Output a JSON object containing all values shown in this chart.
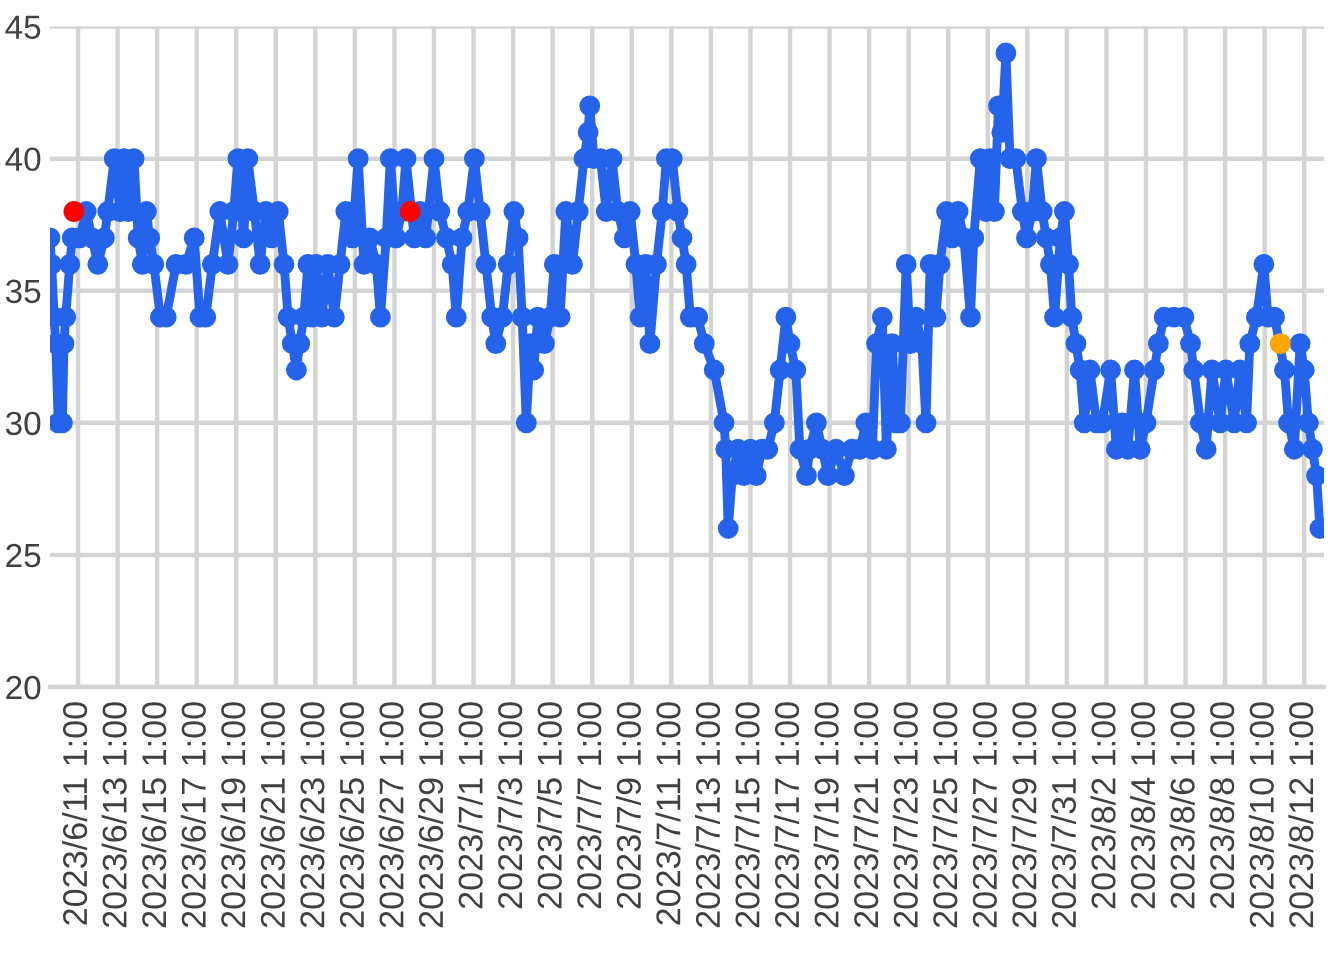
{
  "chart_data": {
    "type": "line",
    "x": [
      "2023-06-09T15:00",
      "2023-06-09T17:00",
      "2023-06-09T20:00",
      "2023-06-09T22:00",
      "2023-06-10T01:00",
      "2023-06-10T06:00",
      "2023-06-10T08:00",
      "2023-06-10T10:00",
      "2023-06-10T15:00",
      "2023-06-10T18:00",
      "2023-06-11T03:00",
      "2023-06-11T11:00",
      "2023-06-11T18:00",
      "2023-06-12T01:00",
      "2023-06-12T09:00",
      "2023-06-12T13:00",
      "2023-06-12T21:00",
      "2023-06-13T04:00",
      "2023-06-13T09:00",
      "2023-06-13T14:00",
      "2023-06-13T21:00",
      "2023-06-14T02:00",
      "2023-06-14T07:00",
      "2023-06-14T12:00",
      "2023-06-14T16:00",
      "2023-06-14T21:00",
      "2023-06-15T05:00",
      "2023-06-15T12:00",
      "2023-06-16T00:00",
      "2023-06-16T12:00",
      "2023-06-16T22:00",
      "2023-06-17T05:00",
      "2023-06-17T12:00",
      "2023-06-17T20:00",
      "2023-06-18T05:00",
      "2023-06-18T15:00",
      "2023-06-18T22:00",
      "2023-06-19T03:00",
      "2023-06-19T10:00",
      "2023-06-19T15:00",
      "2023-06-19T23:00",
      "2023-06-20T06:00",
      "2023-06-20T13:00",
      "2023-06-20T20:00",
      "2023-06-21T04:00",
      "2023-06-21T11:00",
      "2023-06-21T16:00",
      "2023-06-21T21:00",
      "2023-06-22T02:00",
      "2023-06-22T06:00",
      "2023-06-22T11:00",
      "2023-06-22T16:00",
      "2023-06-22T21:00",
      "2023-06-23T02:00",
      "2023-06-23T09:00",
      "2023-06-23T16:00",
      "2023-06-24T00:00",
      "2023-06-24T07:00",
      "2023-06-24T14:00",
      "2023-06-24T22:00",
      "2023-06-25T05:00",
      "2023-06-25T12:00",
      "2023-06-25T19:00",
      "2023-06-26T03:00",
      "2023-06-26T08:00",
      "2023-06-26T15:00",
      "2023-06-26T20:00",
      "2023-06-27T03:00",
      "2023-06-27T10:00",
      "2023-06-27T15:00",
      "2023-06-28T01:00",
      "2023-06-28T08:00",
      "2023-06-28T15:00",
      "2023-06-29T01:00",
      "2023-06-29T08:00",
      "2023-06-29T16:00",
      "2023-06-29T23:00",
      "2023-06-30T04:00",
      "2023-06-30T11:00",
      "2023-06-30T18:00",
      "2023-07-01T02:00",
      "2023-07-01T09:00",
      "2023-07-01T16:00",
      "2023-07-01T23:00",
      "2023-07-02T04:00",
      "2023-07-02T12:00",
      "2023-07-02T19:00",
      "2023-07-03T02:00",
      "2023-07-03T07:00",
      "2023-07-03T12:00",
      "2023-07-03T17:00",
      "2023-07-03T22:00",
      "2023-07-04T02:00",
      "2023-07-04T07:00",
      "2023-07-04T15:00",
      "2023-07-04T22:00",
      "2023-07-05T03:00",
      "2023-07-05T10:00",
      "2023-07-05T17:00",
      "2023-07-06T01:00",
      "2023-07-06T08:00",
      "2023-07-06T15:00",
      "2023-07-06T20:00",
      "2023-07-06T22:00",
      "2023-07-07T03:00",
      "2023-07-07T11:00",
      "2023-07-07T18:00",
      "2023-07-08T01:00",
      "2023-07-08T08:00",
      "2023-07-08T16:00",
      "2023-07-08T23:00",
      "2023-07-09T06:00",
      "2023-07-09T11:00",
      "2023-07-09T18:00",
      "2023-07-09T23:00",
      "2023-07-10T07:00",
      "2023-07-10T14:00",
      "2023-07-10T19:00",
      "2023-07-11T02:00",
      "2023-07-11T09:00",
      "2023-07-11T14:00",
      "2023-07-11T19:00",
      "2023-07-12T00:00",
      "2023-07-12T09:00",
      "2023-07-12T17:00",
      "2023-07-13T05:00",
      "2023-07-13T17:00",
      "2023-07-13T19:00",
      "2023-07-13T22:00",
      "2023-07-14T03:00",
      "2023-07-14T10:00",
      "2023-07-14T17:00",
      "2023-07-15T01:00",
      "2023-07-15T08:00",
      "2023-07-15T15:00",
      "2023-07-15T22:00",
      "2023-07-16T06:00",
      "2023-07-16T13:00",
      "2023-07-16T20:00",
      "2023-07-17T01:00",
      "2023-07-17T08:00",
      "2023-07-17T13:00",
      "2023-07-17T21:00",
      "2023-07-18T01:00",
      "2023-07-18T09:00",
      "2023-07-18T16:00",
      "2023-07-18T23:00",
      "2023-07-19T09:00",
      "2023-07-19T19:00",
      "2023-07-20T04:00",
      "2023-07-20T14:00",
      "2023-07-20T21:00",
      "2023-07-21T05:00",
      "2023-07-21T10:00",
      "2023-07-21T17:00",
      "2023-07-21T22:00",
      "2023-07-22T05:00",
      "2023-07-22T10:00",
      "2023-07-22T15:00",
      "2023-07-22T22:00",
      "2023-07-23T03:00",
      "2023-07-23T10:00",
      "2023-07-23T17:00",
      "2023-07-23T22:00",
      "2023-07-24T03:00",
      "2023-07-24T10:00",
      "2023-07-24T15:00",
      "2023-07-24T23:00",
      "2023-07-25T06:00",
      "2023-07-25T13:00",
      "2023-07-25T20:00",
      "2023-07-26T04:00",
      "2023-07-26T08:00",
      "2023-07-26T16:00",
      "2023-07-26T23:00",
      "2023-07-27T04:00",
      "2023-07-27T09:00",
      "2023-07-27T14:00",
      "2023-07-27T18:00",
      "2023-07-27T23:00",
      "2023-07-28T04:00",
      "2023-07-28T11:00",
      "2023-07-28T19:00",
      "2023-07-29T00:00",
      "2023-07-29T07:00",
      "2023-07-29T12:00",
      "2023-07-29T19:00",
      "2023-07-30T00:00",
      "2023-07-30T05:00",
      "2023-07-30T10:00",
      "2023-07-30T17:00",
      "2023-07-30T22:00",
      "2023-07-31T03:00",
      "2023-07-31T07:00",
      "2023-07-31T12:00",
      "2023-07-31T17:00",
      "2023-07-31T22:00",
      "2023-08-01T05:00",
      "2023-08-01T13:00",
      "2023-08-01T20:00",
      "2023-08-02T06:00",
      "2023-08-02T13:00",
      "2023-08-02T20:00",
      "2023-08-03T03:00",
      "2023-08-03T11:00",
      "2023-08-03T18:00",
      "2023-08-04T01:00",
      "2023-08-04T11:00",
      "2023-08-04T16:00",
      "2023-08-04T23:00",
      "2023-08-05T11:00",
      "2023-08-05T23:00",
      "2023-08-06T07:00",
      "2023-08-06T11:00",
      "2023-08-06T19:00",
      "2023-08-07T02:00",
      "2023-08-07T09:00",
      "2023-08-07T19:00",
      "2023-08-08T02:00",
      "2023-08-08T12:00",
      "2023-08-08T19:00",
      "2023-08-09T03:00",
      "2023-08-09T07:00",
      "2023-08-09T15:00",
      "2023-08-10T00:00",
      "2023-08-10T05:00",
      "2023-08-10T13:00",
      "2023-08-11T01:00",
      "2023-08-11T06:00",
      "2023-08-11T13:00",
      "2023-08-11T20:00",
      "2023-08-12T01:00",
      "2023-08-12T06:00",
      "2023-08-12T11:00",
      "2023-08-12T16:00",
      "2023-08-12T20:00"
    ],
    "series": [
      {
        "color": "#2563eb",
        "values": [
          37,
          36,
          34,
          33,
          30,
          30,
          33,
          34,
          36,
          37,
          37,
          38,
          37,
          36,
          37,
          38,
          40,
          38,
          40,
          38,
          40,
          37,
          36,
          38,
          37,
          36,
          34,
          34,
          36,
          36,
          37,
          34,
          34,
          36,
          38,
          36,
          38,
          40,
          37,
          40,
          38,
          36,
          38,
          37,
          38,
          36,
          34,
          33,
          32,
          33,
          34,
          36,
          34,
          36,
          34,
          36,
          34,
          36,
          38,
          37,
          40,
          36,
          37,
          36,
          34,
          37,
          40,
          37,
          38,
          40,
          37,
          38,
          37,
          40,
          38,
          37,
          36,
          34,
          37,
          38,
          40,
          38,
          36,
          34,
          33,
          34,
          36,
          38,
          37,
          34,
          30,
          33,
          32,
          34,
          33,
          34,
          36,
          34,
          38,
          36,
          38,
          40,
          41,
          42,
          40,
          40,
          38,
          40,
          38,
          37,
          38,
          36,
          34,
          36,
          33,
          36,
          38,
          40,
          40,
          38,
          37,
          36,
          34,
          34,
          33,
          32,
          30,
          29,
          26,
          28,
          29,
          28,
          29,
          28,
          29,
          29,
          30,
          32,
          34,
          33,
          32,
          29,
          28,
          29,
          30,
          29,
          28,
          29,
          28,
          29,
          29,
          30,
          29,
          33,
          34,
          29,
          33,
          30,
          30,
          36,
          33,
          34,
          33,
          30,
          36,
          34,
          36,
          38,
          37,
          38,
          37,
          34,
          37,
          40,
          38,
          40,
          38,
          42,
          41,
          44,
          40,
          40,
          38,
          37,
          38,
          40,
          38,
          37,
          36,
          34,
          37,
          38,
          36,
          34,
          33,
          32,
          30,
          32,
          30,
          30,
          32,
          29,
          30,
          29,
          32,
          29,
          30,
          32,
          33,
          34,
          34,
          34,
          33,
          32,
          30,
          29,
          32,
          30,
          32,
          30,
          32,
          30,
          33,
          34,
          36,
          34,
          34,
          32,
          30,
          29,
          33,
          32,
          30,
          29,
          28,
          26
        ]
      },
      {
        "type": "scatter",
        "color": "#ff0000",
        "x": [
          "2023-06-10T20:00",
          "2023-06-27T20:00"
        ],
        "values": [
          38,
          38
        ]
      },
      {
        "type": "scatter",
        "color": "#ffa500",
        "x": [
          "2023-08-10T20:00"
        ],
        "values": [
          33
        ]
      }
    ],
    "xlim": [
      "2023-06-09T15:00",
      "2023-08-13T01:00"
    ],
    "xticks": [
      {
        "value": "2023-06-11T01:00",
        "label": "2023/6/11 1:00"
      },
      {
        "value": "2023-06-13T01:00",
        "label": "2023/6/13 1:00"
      },
      {
        "value": "2023-06-15T01:00",
        "label": "2023/6/15 1:00"
      },
      {
        "value": "2023-06-17T01:00",
        "label": "2023/6/17 1:00"
      },
      {
        "value": "2023-06-19T01:00",
        "label": "2023/6/19 1:00"
      },
      {
        "value": "2023-06-21T01:00",
        "label": "2023/6/21 1:00"
      },
      {
        "value": "2023-06-23T01:00",
        "label": "2023/6/23 1:00"
      },
      {
        "value": "2023-06-25T01:00",
        "label": "2023/6/25 1:00"
      },
      {
        "value": "2023-06-27T01:00",
        "label": "2023/6/27 1:00"
      },
      {
        "value": "2023-06-29T01:00",
        "label": "2023/6/29 1:00"
      },
      {
        "value": "2023-07-01T01:00",
        "label": "2023/7/1 1:00"
      },
      {
        "value": "2023-07-03T01:00",
        "label": "2023/7/3 1:00"
      },
      {
        "value": "2023-07-05T01:00",
        "label": "2023/7/5 1:00"
      },
      {
        "value": "2023-07-07T01:00",
        "label": "2023/7/7 1:00"
      },
      {
        "value": "2023-07-09T01:00",
        "label": "2023/7/9 1:00"
      },
      {
        "value": "2023-07-11T01:00",
        "label": "2023/7/11 1:00"
      },
      {
        "value": "2023-07-13T01:00",
        "label": "2023/7/13 1:00"
      },
      {
        "value": "2023-07-15T01:00",
        "label": "2023/7/15 1:00"
      },
      {
        "value": "2023-07-17T01:00",
        "label": "2023/7/17 1:00"
      },
      {
        "value": "2023-07-19T01:00",
        "label": "2023/7/19 1:00"
      },
      {
        "value": "2023-07-21T01:00",
        "label": "2023/7/21 1:00"
      },
      {
        "value": "2023-07-23T01:00",
        "label": "2023/7/23 1:00"
      },
      {
        "value": "2023-07-25T01:00",
        "label": "2023/7/25 1:00"
      },
      {
        "value": "2023-07-27T01:00",
        "label": "2023/7/27 1:00"
      },
      {
        "value": "2023-07-29T01:00",
        "label": "2023/7/29 1:00"
      },
      {
        "value": "2023-07-31T01:00",
        "label": "2023/7/31 1:00"
      },
      {
        "value": "2023-08-02T01:00",
        "label": "2023/8/2 1:00"
      },
      {
        "value": "2023-08-04T01:00",
        "label": "2023/8/4 1:00"
      },
      {
        "value": "2023-08-06T01:00",
        "label": "2023/8/6 1:00"
      },
      {
        "value": "2023-08-08T01:00",
        "label": "2023/8/8 1:00"
      },
      {
        "value": "2023-08-10T01:00",
        "label": "2023/8/10 1:00"
      },
      {
        "value": "2023-08-12T01:00",
        "label": "2023/8/12 1:00"
      }
    ],
    "ylim": [
      20,
      45
    ],
    "yticks": [
      20,
      25,
      30,
      35,
      40,
      45
    ],
    "grid": true,
    "marker": "circle",
    "line_style": "solid"
  }
}
